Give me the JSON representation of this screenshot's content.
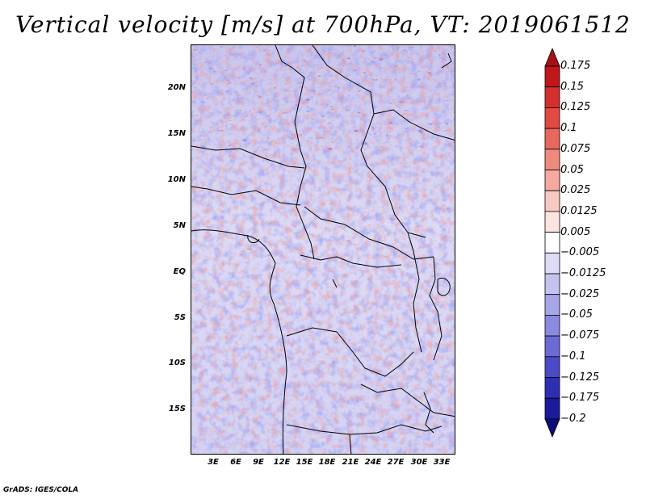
{
  "title": "Vertical velocity [m/s] at 700hPa, VT: 2019061512",
  "footer": "GrADS: IGES/COLA",
  "map": {
    "variable": "Vertical velocity",
    "units": "m/s",
    "level": "700hPa",
    "valid_time": "2019061512",
    "lat_ticks": [
      "20N",
      "15N",
      "10N",
      "5N",
      "EQ",
      "5S",
      "10S",
      "15S"
    ],
    "lon_ticks": [
      "3E",
      "6E",
      "9E",
      "12E",
      "15E",
      "18E",
      "21E",
      "24E",
      "27E",
      "30E",
      "33E"
    ]
  },
  "colorbar": {
    "labels": [
      "0.175",
      "0.15",
      "0.125",
      "0.1",
      "0.075",
      "0.05",
      "0.025",
      "0.0125",
      "0.005",
      "−0.005",
      "−0.0125",
      "−0.025",
      "−0.05",
      "−0.075",
      "−0.1",
      "−0.125",
      "−0.175",
      "−0.2"
    ],
    "colors": [
      "#a50f15",
      "#c0161c",
      "#d32f2f",
      "#e04a42",
      "#e8685f",
      "#ef8a80",
      "#f5a9a0",
      "#f9c8c2",
      "#fce4e0",
      "#ffffff",
      "#dcdcf7",
      "#c3c3f0",
      "#a7a7e8",
      "#8a8ae0",
      "#6b6bd6",
      "#4b4bc8",
      "#2e2eb5",
      "#1a1a9a",
      "#0d0d7a"
    ]
  }
}
